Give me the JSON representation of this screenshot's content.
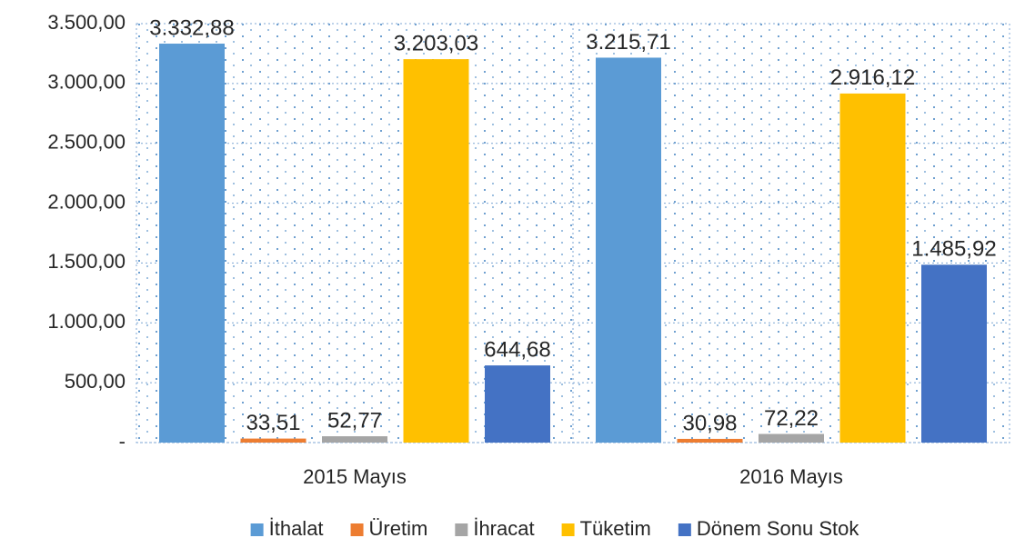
{
  "chart_data": {
    "type": "bar",
    "categories": [
      "2015 Mayıs",
      "2016 Mayıs"
    ],
    "series": [
      {
        "name": "İthalat",
        "color": "#5b9bd5",
        "values": [
          3332.88,
          3215.71
        ],
        "value_labels": [
          "3.332,88",
          "3.215,71"
        ]
      },
      {
        "name": "Üretim",
        "color": "#ed7d31",
        "values": [
          33.51,
          30.98
        ],
        "value_labels": [
          "33,51",
          "30,98"
        ]
      },
      {
        "name": "İhracat",
        "color": "#a5a5a5",
        "values": [
          52.77,
          72.22
        ],
        "value_labels": [
          "52,77",
          "72,22"
        ]
      },
      {
        "name": "Tüketim",
        "color": "#ffc000",
        "values": [
          3203.03,
          2916.12
        ],
        "value_labels": [
          "3.203,03",
          "2.916,12"
        ]
      },
      {
        "name": "Dönem Sonu Stok",
        "color": "#4472c4",
        "values": [
          644.68,
          1485.92
        ],
        "value_labels": [
          "644,68",
          "1.485,92"
        ]
      }
    ],
    "ylim": [
      0,
      3500
    ],
    "yticks": [
      {
        "value": 0,
        "label": "-"
      },
      {
        "value": 500,
        "label": "500,00"
      },
      {
        "value": 1000,
        "label": "1.000,00"
      },
      {
        "value": 1500,
        "label": "1.500,00"
      },
      {
        "value": 2000,
        "label": "2.000,00"
      },
      {
        "value": 2500,
        "label": "2.500,00"
      },
      {
        "value": 3000,
        "label": "3.000,00"
      },
      {
        "value": 3500,
        "label": "3.500,00"
      }
    ],
    "grid": true,
    "legend": "bottom"
  }
}
